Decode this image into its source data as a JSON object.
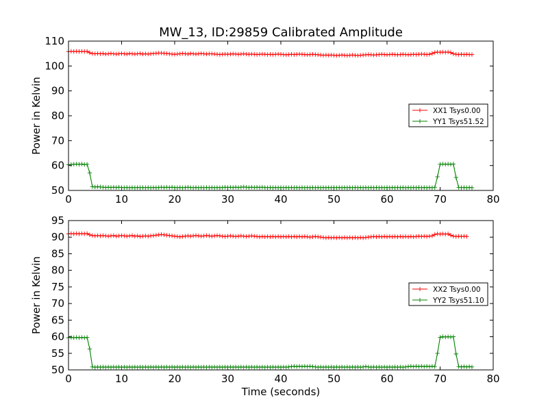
{
  "title": "MW_13, ID:29859 Calibrated Amplitude",
  "colors": {
    "xx": "#ff0000",
    "yy": "#008000"
  },
  "chart_data": [
    {
      "type": "line",
      "title": "MW_13, ID:29859 Calibrated Amplitude",
      "xlabel": "",
      "ylabel": "Power in Kelvin",
      "xlim": [
        0,
        80
      ],
      "ylim": [
        50,
        110
      ],
      "xticks": [
        0,
        10,
        20,
        30,
        40,
        50,
        60,
        70,
        80
      ],
      "yticks": [
        50,
        60,
        70,
        80,
        90,
        100,
        110
      ],
      "legend_position": "center-right",
      "series": [
        {
          "name": "XX1 Tsys0.00",
          "color": "#ff0000",
          "marker": "+",
          "x_start": 0,
          "x_step": 0.5,
          "values": [
            105.8,
            105.9,
            105.8,
            105.9,
            105.8,
            105.9,
            105.8,
            105.9,
            105.3,
            105.0,
            104.9,
            105.0,
            104.9,
            105.0,
            104.8,
            104.9,
            105.0,
            104.9,
            104.8,
            104.9,
            105.0,
            104.9,
            104.8,
            105.0,
            104.9,
            104.8,
            104.9,
            105.0,
            104.8,
            104.9,
            104.8,
            104.9,
            105.0,
            105.1,
            105.2,
            105.2,
            105.1,
            105.0,
            104.9,
            104.8,
            104.7,
            104.8,
            104.9,
            105.0,
            104.9,
            104.8,
            105.0,
            104.9,
            104.8,
            104.9,
            105.0,
            104.9,
            104.8,
            104.9,
            104.9,
            104.8,
            104.7,
            104.6,
            104.7,
            104.8,
            104.7,
            104.8,
            104.9,
            104.8,
            104.7,
            104.8,
            104.9,
            104.8,
            104.7,
            104.8,
            104.7,
            104.6,
            104.7,
            104.8,
            104.7,
            104.6,
            104.7,
            104.6,
            104.7,
            104.8,
            104.7,
            104.6,
            104.5,
            104.6,
            104.7,
            104.6,
            104.7,
            104.8,
            104.7,
            104.6,
            104.5,
            104.6,
            104.7,
            104.6,
            104.5,
            104.4,
            104.3,
            104.4,
            104.3,
            104.4,
            104.3,
            104.2,
            104.3,
            104.4,
            104.3,
            104.2,
            104.3,
            104.4,
            104.3,
            104.2,
            104.3,
            104.4,
            104.5,
            104.6,
            104.5,
            104.4,
            104.5,
            104.6,
            104.7,
            104.6,
            104.5,
            104.6,
            104.7,
            104.6,
            104.5,
            104.6,
            104.7,
            104.6,
            104.5,
            104.6,
            104.7,
            104.6,
            104.7,
            104.8,
            104.7,
            104.6,
            104.7,
            105.0,
            105.4,
            105.6,
            105.5,
            105.6,
            105.5,
            105.6,
            105.4,
            104.9,
            104.7,
            104.6,
            104.7,
            104.6,
            104.7,
            104.6,
            104.6
          ]
        },
        {
          "name": "YY1 Tsys51.52",
          "color": "#008000",
          "marker": "+",
          "x_start": 0,
          "x_step": 0.5,
          "values": [
            60.3,
            60.4,
            60.5,
            60.6,
            60.5,
            60.6,
            60.4,
            60.5,
            57.0,
            51.5,
            51.4,
            51.5,
            51.4,
            51.3,
            51.2,
            51.3,
            51.2,
            51.3,
            51.2,
            51.3,
            51.2,
            51.1,
            51.2,
            51.1,
            51.2,
            51.1,
            51.2,
            51.1,
            51.2,
            51.1,
            51.2,
            51.1,
            51.2,
            51.1,
            51.2,
            51.3,
            51.2,
            51.3,
            51.2,
            51.3,
            51.2,
            51.1,
            51.2,
            51.1,
            51.2,
            51.3,
            51.2,
            51.1,
            51.2,
            51.1,
            51.2,
            51.1,
            51.2,
            51.1,
            51.2,
            51.1,
            51.2,
            51.1,
            51.2,
            51.3,
            51.2,
            51.3,
            51.2,
            51.3,
            51.2,
            51.3,
            51.4,
            51.3,
            51.2,
            51.3,
            51.2,
            51.3,
            51.2,
            51.3,
            51.2,
            51.1,
            51.2,
            51.1,
            51.2,
            51.1,
            51.2,
            51.1,
            51.2,
            51.1,
            51.2,
            51.1,
            51.2,
            51.1,
            51.2,
            51.1,
            51.2,
            51.1,
            51.2,
            51.1,
            51.2,
            51.1,
            51.2,
            51.1,
            51.2,
            51.1,
            51.2,
            51.1,
            51.2,
            51.1,
            51.2,
            51.1,
            51.2,
            51.1,
            51.2,
            51.1,
            51.2,
            51.1,
            51.2,
            51.1,
            51.2,
            51.1,
            51.2,
            51.1,
            51.2,
            51.1,
            51.2,
            51.1,
            51.2,
            51.1,
            51.2,
            51.1,
            51.2,
            51.1,
            51.2,
            51.1,
            51.2,
            51.1,
            51.2,
            51.1,
            51.2,
            51.1,
            51.2,
            51.1,
            51.2,
            55.5,
            60.5,
            60.6,
            60.5,
            60.6,
            60.5,
            60.6,
            55.2,
            51.2,
            51.1,
            51.2,
            51.1,
            51.2,
            51.1
          ]
        }
      ]
    },
    {
      "type": "line",
      "title": "",
      "xlabel": "Time (seconds)",
      "ylabel": "Power in Kelvin",
      "xlim": [
        0,
        80
      ],
      "ylim": [
        50,
        95
      ],
      "xticks": [
        0,
        10,
        20,
        30,
        40,
        50,
        60,
        70,
        80
      ],
      "yticks": [
        50,
        55,
        60,
        65,
        70,
        75,
        80,
        85,
        90,
        95
      ],
      "legend_position": "center-right",
      "series": [
        {
          "name": "XX2 Tsys0.00",
          "color": "#ff0000",
          "marker": "+",
          "x_start": 0,
          "x_step": 0.5,
          "values": [
            91.0,
            91.1,
            91.0,
            91.1,
            91.0,
            91.1,
            91.0,
            91.1,
            90.7,
            90.5,
            90.4,
            90.5,
            90.4,
            90.5,
            90.4,
            90.3,
            90.4,
            90.5,
            90.3,
            90.4,
            90.5,
            90.4,
            90.3,
            90.4,
            90.5,
            90.3,
            90.4,
            90.2,
            90.3,
            90.4,
            90.3,
            90.4,
            90.5,
            90.6,
            90.7,
            90.8,
            90.7,
            90.6,
            90.5,
            90.4,
            90.3,
            90.2,
            90.1,
            90.2,
            90.3,
            90.4,
            90.3,
            90.4,
            90.5,
            90.4,
            90.3,
            90.4,
            90.5,
            90.4,
            90.3,
            90.4,
            90.5,
            90.4,
            90.3,
            90.2,
            90.3,
            90.4,
            90.3,
            90.2,
            90.3,
            90.4,
            90.3,
            90.2,
            90.3,
            90.4,
            90.3,
            90.2,
            90.1,
            90.2,
            90.1,
            90.2,
            90.1,
            90.2,
            90.1,
            90.2,
            90.1,
            90.2,
            90.1,
            90.2,
            90.1,
            90.2,
            90.1,
            90.2,
            90.1,
            90.2,
            90.1,
            90.0,
            90.1,
            90.2,
            90.1,
            90.0,
            89.9,
            89.8,
            89.9,
            89.8,
            89.9,
            89.8,
            89.9,
            89.8,
            89.9,
            89.8,
            89.9,
            89.8,
            89.9,
            89.8,
            89.9,
            89.8,
            89.9,
            90.0,
            90.1,
            90.2,
            90.1,
            90.2,
            90.1,
            90.2,
            90.1,
            90.2,
            90.1,
            90.2,
            90.1,
            90.2,
            90.1,
            90.2,
            90.1,
            90.2,
            90.1,
            90.2,
            90.3,
            90.2,
            90.3,
            90.2,
            90.3,
            90.4,
            90.8,
            91.0,
            90.9,
            91.0,
            90.9,
            91.0,
            90.6,
            90.3,
            90.2,
            90.3,
            90.2,
            90.3,
            90.2
          ]
        },
        {
          "name": "YY2 Tsys51.10",
          "color": "#008000",
          "marker": "+",
          "x_start": 0,
          "x_step": 0.5,
          "values": [
            59.7,
            59.8,
            59.7,
            59.8,
            59.7,
            59.8,
            59.7,
            59.8,
            56.3,
            50.9,
            50.8,
            50.9,
            50.8,
            50.9,
            50.8,
            50.9,
            50.8,
            50.9,
            50.8,
            50.9,
            50.8,
            50.9,
            50.8,
            50.9,
            50.8,
            50.9,
            50.8,
            50.9,
            50.8,
            50.9,
            50.8,
            50.9,
            50.8,
            50.9,
            50.8,
            50.9,
            50.8,
            50.9,
            50.8,
            50.9,
            50.8,
            50.9,
            50.8,
            50.9,
            50.8,
            50.9,
            50.8,
            50.9,
            50.8,
            50.9,
            50.8,
            50.9,
            50.8,
            50.9,
            50.8,
            50.9,
            50.8,
            50.9,
            50.8,
            50.9,
            50.8,
            50.9,
            50.8,
            50.9,
            50.8,
            50.9,
            50.8,
            50.9,
            50.8,
            50.9,
            50.8,
            50.9,
            50.8,
            50.9,
            50.8,
            50.9,
            50.8,
            50.9,
            50.8,
            50.9,
            50.8,
            50.9,
            50.8,
            50.9,
            51.0,
            51.1,
            51.0,
            51.1,
            51.0,
            51.1,
            51.0,
            51.1,
            51.0,
            50.9,
            50.8,
            50.9,
            50.8,
            50.9,
            50.8,
            50.9,
            50.8,
            50.9,
            50.8,
            50.9,
            50.8,
            50.9,
            50.8,
            50.9,
            50.8,
            50.9,
            50.8,
            50.9,
            51.0,
            50.9,
            50.8,
            50.9,
            50.8,
            50.9,
            50.8,
            50.9,
            50.8,
            50.9,
            50.8,
            50.9,
            50.8,
            50.9,
            50.8,
            50.9,
            51.0,
            51.1,
            51.0,
            51.1,
            51.0,
            51.1,
            51.0,
            51.1,
            51.0,
            51.1,
            51.0,
            55.0,
            59.8,
            60.0,
            59.9,
            60.0,
            59.9,
            60.0,
            54.8,
            51.0,
            50.9,
            51.0,
            50.9,
            51.0,
            50.9
          ]
        }
      ]
    }
  ]
}
